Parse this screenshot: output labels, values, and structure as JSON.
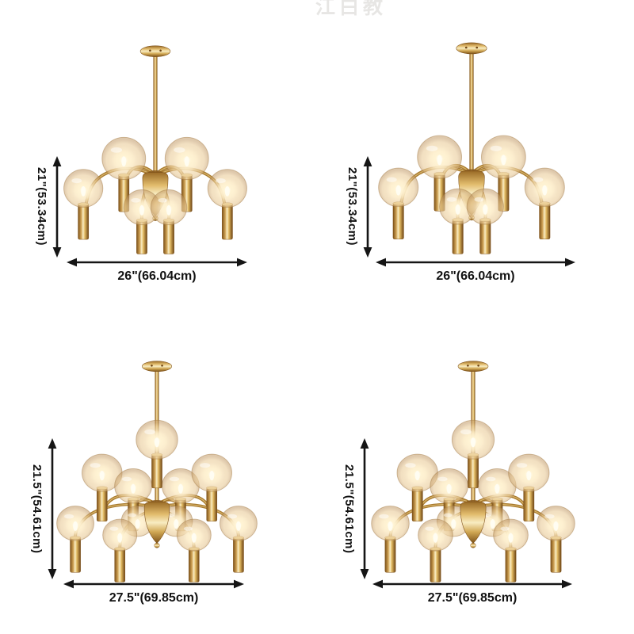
{
  "watermark": {
    "text": "江白教"
  },
  "colors": {
    "background": "#ffffff",
    "dimension_lines": "#151515",
    "brass": "#b5853c",
    "brass_dark": "#7c5118",
    "brass_highlight": "#f8ecc2",
    "globe_glow": "#fff6da"
  },
  "products": [
    {
      "name": "8-light brass globe chandelier",
      "position": "top-left",
      "height_label": "21\"(53.34cm)",
      "width_label": "26\"(66.04cm)"
    },
    {
      "name": "8-light brass globe chandelier",
      "position": "top-right",
      "height_label": "21\"(53.34cm)",
      "width_label": "26\"(66.04cm)"
    },
    {
      "name": "12-light brass globe chandelier",
      "position": "bottom-left",
      "height_label": "21.5\"(54.61cm)",
      "width_label": "27.5\"(69.85cm)"
    },
    {
      "name": "12-light brass globe chandelier",
      "position": "bottom-right",
      "height_label": "21.5\"(54.61cm)",
      "width_label": "27.5\"(69.85cm)"
    }
  ]
}
